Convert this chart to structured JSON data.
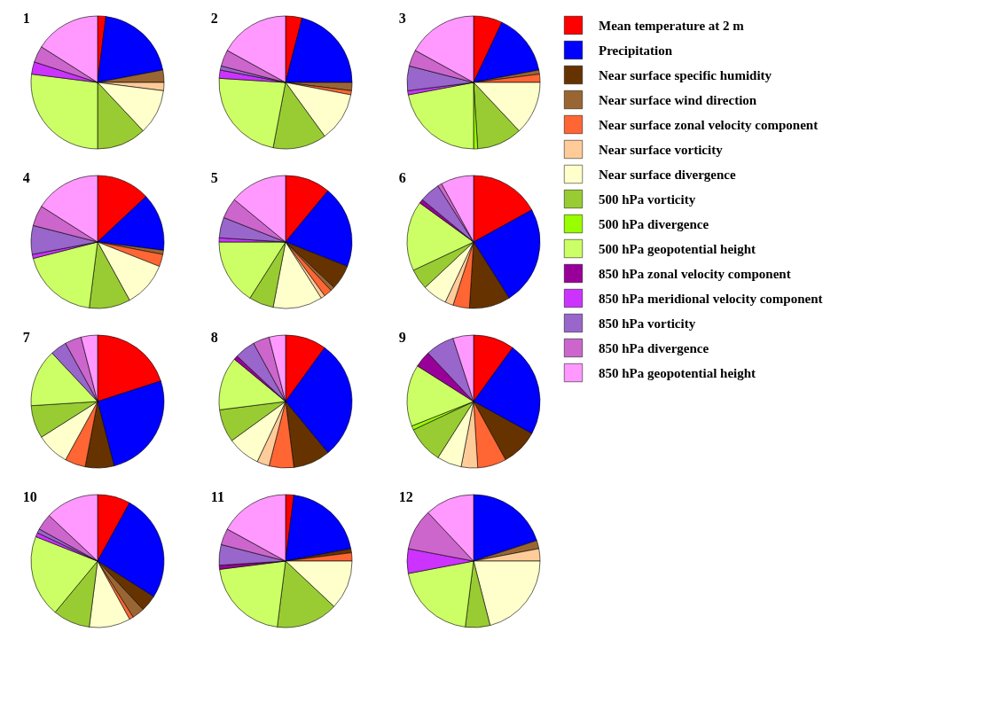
{
  "chart_data": [
    {
      "type": "pie",
      "title": "1",
      "legend": "right",
      "categories": [
        "Mean temperature at 2 m",
        "Precipitation",
        "Near surface specific humidity",
        "Near surface wind direction",
        "Near surface zonal velocity component",
        "Near surface vorticity",
        "Near surface divergence",
        "500 hPa vorticity",
        "500 hPa divergence",
        "500 hPa geopotential height",
        "850 hPa zonal velocity component",
        "850 hPa meridional velocity component",
        "850 hPa vorticity",
        "850 hPa divergence",
        "850 hPa geopotential height"
      ],
      "colors": [
        "#ff0000",
        "#0000ff",
        "#663300",
        "#996633",
        "#ff6633",
        "#ffcc99",
        "#ffffcc",
        "#99cc33",
        "#99ff00",
        "#ccff66",
        "#990099",
        "#cc33ff",
        "#9966cc",
        "#cc66cc",
        "#ff99ff"
      ],
      "values": [
        2,
        20,
        null,
        3,
        null,
        2,
        11,
        12,
        null,
        27,
        null,
        3,
        null,
        4,
        16
      ]
    },
    {
      "type": "pie",
      "title": "2",
      "values": [
        4,
        21,
        null,
        2,
        1,
        null,
        12,
        13,
        null,
        23,
        null,
        2,
        1,
        4,
        17
      ]
    },
    {
      "type": "pie",
      "title": "3",
      "values": [
        7,
        15,
        null,
        1,
        2,
        null,
        13,
        11,
        1,
        22,
        null,
        1,
        6,
        4,
        17
      ]
    },
    {
      "type": "pie",
      "title": "4",
      "values": [
        13,
        14,
        null,
        1,
        3,
        null,
        11,
        10,
        null,
        19,
        null,
        1,
        7,
        5,
        16
      ]
    },
    {
      "type": "pie",
      "title": "5",
      "values": [
        11,
        20,
        6,
        1,
        2,
        1,
        12,
        6,
        null,
        16,
        null,
        1,
        5,
        5,
        14
      ]
    },
    {
      "type": "pie",
      "title": "6",
      "values": [
        17,
        24,
        10,
        null,
        4,
        2,
        6,
        5,
        null,
        17,
        1,
        null,
        5,
        1,
        8
      ]
    },
    {
      "type": "pie",
      "title": "7",
      "values": [
        20,
        26,
        7,
        null,
        5,
        null,
        8,
        8,
        null,
        14,
        null,
        null,
        4,
        4,
        4
      ]
    },
    {
      "type": "pie",
      "title": "8",
      "values": [
        10,
        29,
        9,
        null,
        6,
        3,
        8,
        8,
        null,
        13,
        1,
        null,
        5,
        4,
        4
      ]
    },
    {
      "type": "pie",
      "title": "9",
      "values": [
        10,
        23,
        9,
        null,
        7,
        4,
        6,
        9,
        1,
        15,
        4,
        null,
        7,
        null,
        5
      ]
    },
    {
      "type": "pie",
      "title": "10",
      "values": [
        8,
        26,
        4,
        3,
        1,
        null,
        10,
        9,
        null,
        20,
        null,
        1,
        1,
        4,
        13
      ]
    },
    {
      "type": "pie",
      "title": "11",
      "values": [
        2,
        20,
        1,
        null,
        2,
        null,
        12,
        15,
        null,
        21,
        1,
        null,
        5,
        4,
        17
      ]
    },
    {
      "type": "pie",
      "title": "12",
      "values": [
        null,
        20,
        null,
        2,
        null,
        3,
        21,
        6,
        null,
        20,
        null,
        6,
        null,
        10,
        12
      ]
    }
  ]
}
